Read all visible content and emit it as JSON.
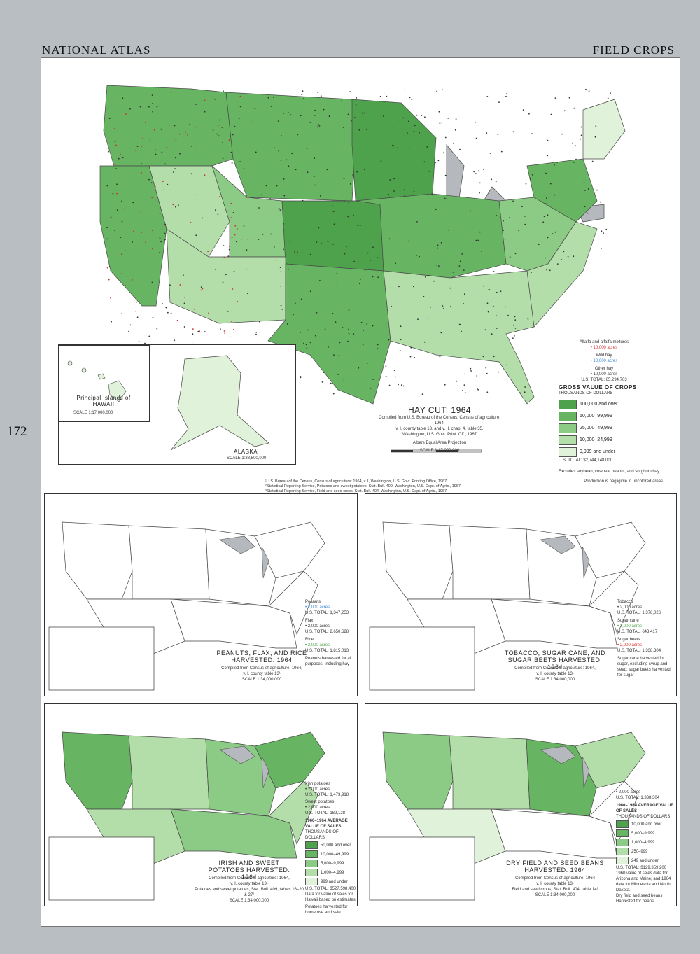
{
  "header": {
    "left": "NATIONAL ATLAS",
    "right": "FIELD CROPS",
    "page_number": "172"
  },
  "colors": {
    "g1": "#4ea24b",
    "g2": "#67b562",
    "g3": "#8ccb85",
    "g4": "#b3deaa",
    "g5": "#e0f2d9",
    "water": "#b5b9bd",
    "red": "#d62a2a",
    "blue": "#3a86d6",
    "dark": "#333333"
  },
  "hay": {
    "title": "HAY CUT: 1964",
    "source": [
      "Compiled from U.S. Bureau of the Census, Census of agriculture: 1964,",
      "v. I, county table 13, and v. II, chap. 4, table 35,",
      "Washington, U.S. Govt. Print. Off., 1967"
    ],
    "projection": "Albers Equal Area Projection",
    "scale": "SCALE 1:17,000,000",
    "scale_miles": [
      "0",
      "100",
      "200",
      "300",
      "400",
      "MILES"
    ],
    "scale_km": [
      "0",
      "200",
      "400",
      "600",
      "KILOMETERS"
    ],
    "symbols": [
      {
        "name": "Alfalfa and alfalfa mixtures",
        "value": "• 10,000 acres"
      },
      {
        "name": "Wild hay",
        "value": "• 10,000 acres"
      },
      {
        "name": "Other hay",
        "value": "• 10,000 acres"
      }
    ],
    "symbols_total": "U.S. TOTAL: 65,294,703",
    "legend_title": "GROSS VALUE OF CROPS",
    "legend_subtitle": "THOUSANDS OF DOLLARS",
    "legend": [
      "100,000 and over",
      "50,000–99,999",
      "25,000–49,999",
      "10,000–24,999",
      "9,999 and under"
    ],
    "legend_total": "U.S. TOTAL: $2,744,148,000",
    "excludes": "Excludes soybean, cowpea, peanut, and sorghum hay",
    "hawaii_label": "Principal Islands of HAWAII",
    "hawaii_scale": "SCALE 1:17,000,000",
    "alaska_label": "ALASKA",
    "alaska_scale": "SCALE 1:38,500,000"
  },
  "notes": {
    "sources": [
      "¹U.S. Bureau of the Census, Census of agriculture: 1964, v. I, Washington, U.S. Govt. Printing Office, 1967",
      "²Statistical Reporting Service, Potatoes and sweet potatoes, Stat. Bull. 409, Washington, U.S. Dept. of Agric., 1967",
      "³Statistical Reporting Service, Field and seed crops, Stat. Bull. 404, Washington, U.S. Dept. of Agric., 1967"
    ],
    "production": "Production is negligible in uncolored areas"
  },
  "peanuts": {
    "title": "PEANUTS, FLAX, AND RICE HARVESTED: 1964",
    "source": [
      "Compiled from Census of agriculture: 1964,",
      "v. I, county table 13¹"
    ],
    "scale": "SCALE 1:34,000,000",
    "legend": [
      {
        "name": "Peanuts",
        "value": "• 2,000 acres",
        "total": "U.S. TOTAL: 1,347,253"
      },
      {
        "name": "Flax",
        "value": "• 2,000 acres",
        "total": "U.S. TOTAL: 2,650,628"
      },
      {
        "name": "Rice",
        "value": "• 2,000 acres",
        "total": "U.S. TOTAL: 1,815,013"
      }
    ],
    "note": "Peanuts harvested for all purposes, including hay"
  },
  "tobacco": {
    "title": "TOBACCO, SUGAR CANE, AND SUGAR BEETS HARVESTED: 1964",
    "source": [
      "Compiled from Census of agriculture: 1964,",
      "v. I, county table 13¹"
    ],
    "scale": "SCALE 1:34,000,000",
    "legend": [
      {
        "name": "Tobacco",
        "value": "• 2,000 acres",
        "total": "U.S. TOTAL: 1,376,026"
      },
      {
        "name": "Sugar cane",
        "value": "• 2,000 acres",
        "total": "U.S. TOTAL: 643,417"
      },
      {
        "name": "Sugar beets",
        "value": "• 2,000 acres",
        "total": "U.S. TOTAL: 1,338,304"
      }
    ],
    "note": "Sugar cane harvested for sugar, excluding syrup and seed; sugar beets harvested for sugar"
  },
  "potatoes": {
    "title": "IRISH AND SWEET POTATOES HARVESTED: 1964",
    "source": [
      "Compiled from Census of agriculture: 1964,",
      "v. I, county table 13¹",
      "Potatoes and sweet potatoes, Stat. Bull. 409, tables 16–20 & 27²"
    ],
    "scale": "SCALE 1:34,000,000",
    "legend_symbols": [
      {
        "name": "Irish potatoes",
        "value": "• 2,000 acres",
        "total": "U.S. TOTAL: 1,473,918"
      },
      {
        "name": "Sweet potatoes",
        "value": "• 2,000 acres",
        "total": "U.S. TOTAL: 182,128"
      }
    ],
    "legend_title": "1960–1964 AVERAGE VALUE OF SALES",
    "legend_subtitle": "THOUSANDS OF DOLLARS",
    "legend": [
      "50,000 and over",
      "10,000–49,999",
      "5,000–9,999",
      "1,000–4,999",
      "999 and under"
    ],
    "legend_total": "U.S. TOTAL: $527,598,400",
    "notes": [
      "Data for value of sales for Hawaii based on estimates",
      "Potatoes harvested for home use and sale"
    ]
  },
  "beans": {
    "title": "DRY FIELD AND SEED BEANS HARVESTED: 1964",
    "source": [
      "Compiled from Census of agriculture: 1964",
      "v. I, county table 13¹",
      "Field and seed crops, Stat. Bull. 404, table 14³"
    ],
    "scale": "SCALE 1:34,000,000",
    "legend_symbols": [
      {
        "name": "",
        "value": "• 2,000 acres",
        "total": "U.S. TOTAL: 1,338,304"
      }
    ],
    "legend_title": "1960–1964 AVERAGE VALUE OF SALES",
    "legend_subtitle": "THOUSANDS OF DOLLARS",
    "legend": [
      "10,000 and over",
      "5,000–9,999",
      "1,000–4,999",
      "250–999",
      "249 and under"
    ],
    "legend_total": "U.S. TOTAL: $129,359,200",
    "notes": [
      "1960 value of sales data for Arizona and Maine; and 1964 data for Minnesota and North Dakota.",
      "Dry field and seed beans",
      "Harvested for beans"
    ]
  }
}
